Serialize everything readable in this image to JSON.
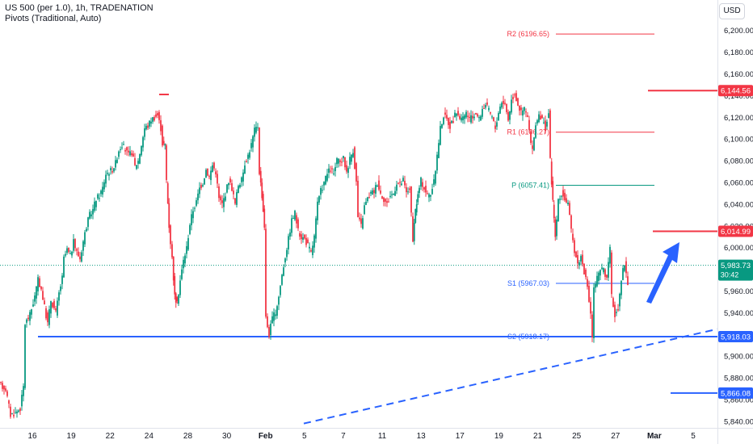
{
  "header": {
    "line1": "US 500 (per 1.0), 1h, TRADENATION",
    "line2": "Pivots (Traditional, Auto)"
  },
  "currency_button": "USD",
  "colors": {
    "up": "#089981",
    "down": "#f23645",
    "pivot_red": "#f23645",
    "pivot_green": "#089981",
    "pivot_blue": "#2962ff",
    "support_blue": "#2962ff",
    "resistance_red": "#f23645",
    "price_badge": "#089981",
    "arrow": "#2962ff"
  },
  "chart_data": {
    "type": "candlestick",
    "title": "US 500 (per 1.0), 1h, TRADENATION",
    "ylim": [
      5834,
      6228
    ],
    "y_ticks": [
      5840,
      5860,
      5880,
      5900,
      5920,
      5940,
      5960,
      5980,
      6000,
      6020,
      6040,
      6060,
      6080,
      6100,
      6120,
      6140,
      6160,
      6180,
      6200
    ],
    "y_tick_labels": [
      "5,840.00",
      "5,860.00",
      "5,880.00",
      "5,900.00",
      "5,920.00",
      "5,940.00",
      "5,960.00",
      "5,980.00",
      "6,000.00",
      "6,020.00",
      "6,040.00",
      "6,060.00",
      "6,080.00",
      "6,100.00",
      "6,120.00",
      "6,140.00",
      "6,160.00",
      "6,180.00",
      "6,200.00"
    ],
    "x_ticks": [
      "16",
      "19",
      "22",
      "24",
      "28",
      "30",
      "Feb",
      "5",
      "7",
      "11",
      "13",
      "17",
      "19",
      "21",
      "25",
      "27",
      "Mar",
      "5"
    ],
    "price_path": [
      [
        0,
        5874
      ],
      [
        8,
        5870
      ],
      [
        14,
        5846
      ],
      [
        20,
        5848
      ],
      [
        26,
        5852
      ],
      [
        30,
        5872
      ],
      [
        32,
        5930
      ],
      [
        38,
        5938
      ],
      [
        44,
        5955
      ],
      [
        48,
        5970
      ],
      [
        52,
        5962
      ],
      [
        56,
        5945
      ],
      [
        60,
        5930
      ],
      [
        64,
        5952
      ],
      [
        70,
        5940
      ],
      [
        74,
        5958
      ],
      [
        78,
        5972
      ],
      [
        80,
        5990
      ],
      [
        84,
        5998
      ],
      [
        88,
        5992
      ],
      [
        92,
        6005
      ],
      [
        96,
        5996
      ],
      [
        100,
        5990
      ],
      [
        104,
        6006
      ],
      [
        108,
        6020
      ],
      [
        112,
        6030
      ],
      [
        116,
        6035
      ],
      [
        120,
        6045
      ],
      [
        124,
        6048
      ],
      [
        128,
        6055
      ],
      [
        132,
        6068
      ],
      [
        136,
        6070
      ],
      [
        140,
        6072
      ],
      [
        144,
        6078
      ],
      [
        148,
        6090
      ],
      [
        152,
        6095
      ],
      [
        156,
        6090
      ],
      [
        160,
        6085
      ],
      [
        164,
        6088
      ],
      [
        168,
        6075
      ],
      [
        172,
        6080
      ],
      [
        176,
        6095
      ],
      [
        180,
        6110
      ],
      [
        184,
        6112
      ],
      [
        188,
        6118
      ],
      [
        192,
        6120
      ],
      [
        196,
        6122
      ],
      [
        200,
        6110
      ],
      [
        202,
        6096
      ],
      [
        205,
        6094
      ],
      [
        207,
        6062
      ],
      [
        210,
        6020
      ],
      [
        214,
        5990
      ],
      [
        217,
        5955
      ],
      [
        220,
        5948
      ],
      [
        224,
        5970
      ],
      [
        228,
        5988
      ],
      [
        232,
        6000
      ],
      [
        236,
        6022
      ],
      [
        240,
        6035
      ],
      [
        244,
        6042
      ],
      [
        248,
        6055
      ],
      [
        252,
        6060
      ],
      [
        256,
        6072
      ],
      [
        260,
        6065
      ],
      [
        264,
        6076
      ],
      [
        268,
        6070
      ],
      [
        272,
        6045
      ],
      [
        276,
        6040
      ],
      [
        280,
        6050
      ],
      [
        284,
        6062
      ],
      [
        288,
        6055
      ],
      [
        292,
        6040
      ],
      [
        296,
        6058
      ],
      [
        300,
        6062
      ],
      [
        304,
        6078
      ],
      [
        308,
        6085
      ],
      [
        312,
        6095
      ],
      [
        316,
        6108
      ],
      [
        320,
        6112
      ],
      [
        322,
        6070
      ],
      [
        325,
        6048
      ],
      [
        328,
        6020
      ],
      [
        330,
        5935
      ],
      [
        334,
        5920
      ],
      [
        338,
        5935
      ],
      [
        342,
        5940
      ],
      [
        346,
        5955
      ],
      [
        350,
        5975
      ],
      [
        354,
        5992
      ],
      [
        358,
        6008
      ],
      [
        362,
        6025
      ],
      [
        366,
        6032
      ],
      [
        370,
        6015
      ],
      [
        374,
        6010
      ],
      [
        378,
        6008
      ],
      [
        382,
        6002
      ],
      [
        386,
        5995
      ],
      [
        390,
        6010
      ],
      [
        394,
        6040
      ],
      [
        398,
        6052
      ],
      [
        402,
        6060
      ],
      [
        406,
        6068
      ],
      [
        410,
        6072
      ],
      [
        414,
        6068
      ],
      [
        418,
        6080
      ],
      [
        422,
        6078
      ],
      [
        426,
        6082
      ],
      [
        430,
        6070
      ],
      [
        434,
        6082
      ],
      [
        438,
        6090
      ],
      [
        442,
        6060
      ],
      [
        444,
        6028
      ],
      [
        448,
        6020
      ],
      [
        452,
        6038
      ],
      [
        456,
        6045
      ],
      [
        460,
        6050
      ],
      [
        464,
        6052
      ],
      [
        468,
        6060
      ],
      [
        472,
        6050
      ],
      [
        476,
        6045
      ],
      [
        480,
        6040
      ],
      [
        484,
        6048
      ],
      [
        488,
        6050
      ],
      [
        492,
        6060
      ],
      [
        496,
        6058
      ],
      [
        500,
        6062
      ],
      [
        504,
        6050
      ],
      [
        508,
        6055
      ],
      [
        512,
        6005
      ],
      [
        515,
        6035
      ],
      [
        518,
        6048
      ],
      [
        522,
        6062
      ],
      [
        526,
        6055
      ],
      [
        530,
        6048
      ],
      [
        534,
        6050
      ],
      [
        538,
        6060
      ],
      [
        542,
        6085
      ],
      [
        546,
        6110
      ],
      [
        550,
        6122
      ],
      [
        554,
        6118
      ],
      [
        558,
        6112
      ],
      [
        562,
        6118
      ],
      [
        566,
        6125
      ],
      [
        570,
        6120
      ],
      [
        574,
        6118
      ],
      [
        578,
        6124
      ],
      [
        582,
        6118
      ],
      [
        586,
        6120
      ],
      [
        590,
        6124
      ],
      [
        594,
        6118
      ],
      [
        598,
        6128
      ],
      [
        602,
        6132
      ],
      [
        606,
        6126
      ],
      [
        610,
        6120
      ],
      [
        614,
        6110
      ],
      [
        618,
        6125
      ],
      [
        622,
        6135
      ],
      [
        626,
        6132
      ],
      [
        630,
        6118
      ],
      [
        634,
        6136
      ],
      [
        638,
        6142
      ],
      [
        642,
        6132
      ],
      [
        646,
        6124
      ],
      [
        650,
        6128
      ],
      [
        654,
        6120
      ],
      [
        658,
        6095
      ],
      [
        660,
        6088
      ],
      [
        664,
        6115
      ],
      [
        668,
        6120
      ],
      [
        672,
        6118
      ],
      [
        676,
        6110
      ],
      [
        680,
        6124
      ],
      [
        682,
        6080
      ],
      [
        685,
        6042
      ],
      [
        688,
        6010
      ],
      [
        692,
        6042
      ],
      [
        696,
        6050
      ],
      [
        700,
        6045
      ],
      [
        704,
        6040
      ],
      [
        708,
        6015
      ],
      [
        712,
        5998
      ],
      [
        716,
        5985
      ],
      [
        720,
        5992
      ],
      [
        724,
        5978
      ],
      [
        728,
        5962
      ],
      [
        732,
        5940
      ],
      [
        734,
        5918
      ],
      [
        736,
        5962
      ],
      [
        740,
        5972
      ],
      [
        744,
        5978
      ],
      [
        748,
        5982
      ],
      [
        752,
        5970
      ],
      [
        756,
        5998
      ],
      [
        758,
        5955
      ],
      [
        762,
        5938
      ],
      [
        766,
        5945
      ],
      [
        770,
        5972
      ],
      [
        774,
        5986
      ],
      [
        778,
        5966
      ]
    ],
    "pivots": [
      {
        "label": "R2 (6196.65)",
        "value": 6196.65,
        "color": "red"
      },
      {
        "label": "R1 (6106.27)",
        "value": 6106.27,
        "color": "red"
      },
      {
        "label": "P (6057.41)",
        "value": 6057.41,
        "color": "green"
      },
      {
        "label": "S1 (5967.03)",
        "value": 5967.03,
        "color": "blue"
      },
      {
        "label": "S2 (5918.17)",
        "value": 5918.17,
        "color": "blue"
      }
    ],
    "levels": [
      {
        "value": 6144.56,
        "label": "6,144.56",
        "color": "red"
      },
      {
        "value": 6014.99,
        "label": "6,014.99",
        "color": "red"
      },
      {
        "value": 5918.03,
        "label": "5,918.03",
        "color": "blue"
      },
      {
        "value": 5866.08,
        "label": "5,866.08",
        "color": "blue"
      }
    ],
    "current_price": {
      "value": 5983.73,
      "label": "5,983.73",
      "countdown": "30:42"
    },
    "trendline": {
      "y_start": 5838,
      "y_end": 5925,
      "style": "dashed"
    },
    "arrow": {
      "from": 5950,
      "to": 6005,
      "direction": "up"
    }
  }
}
